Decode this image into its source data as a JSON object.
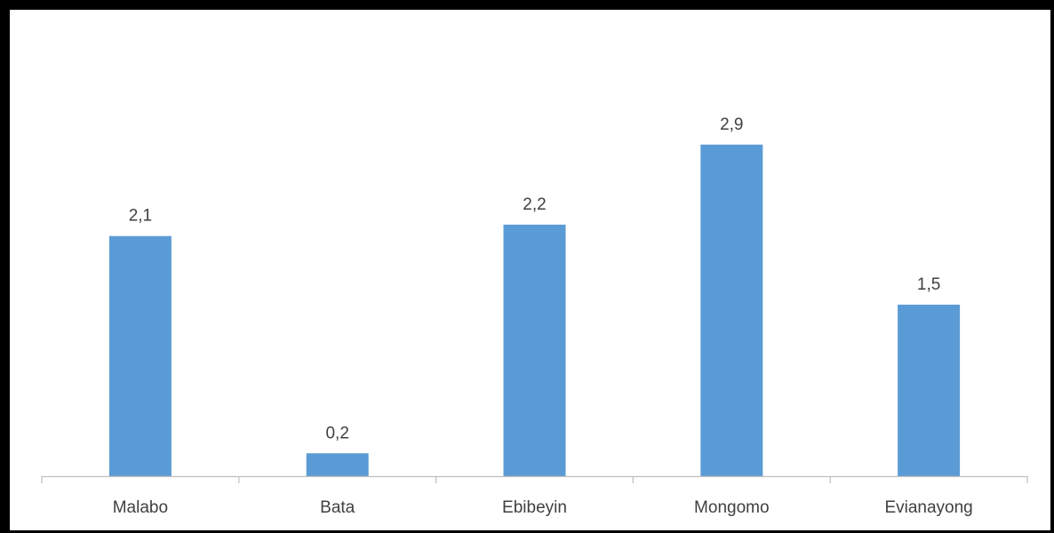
{
  "chart_data": {
    "type": "bar",
    "title": "",
    "xlabel": "",
    "ylabel": "",
    "categories": [
      "Malabo",
      "Bata",
      "Ebibeyin",
      "Mongomo",
      "Evianayong"
    ],
    "values": [
      2.1,
      0.2,
      2.2,
      2.9,
      1.5
    ],
    "value_labels": [
      "2,1",
      "0,2",
      "2,2",
      "2,9",
      "1,5"
    ],
    "ylim": [
      0,
      3.2
    ],
    "grid": false,
    "legend": "none",
    "bar_color": "#5B9BD5",
    "axis_color": "#BFBFBF",
    "text_color": "#404040"
  }
}
